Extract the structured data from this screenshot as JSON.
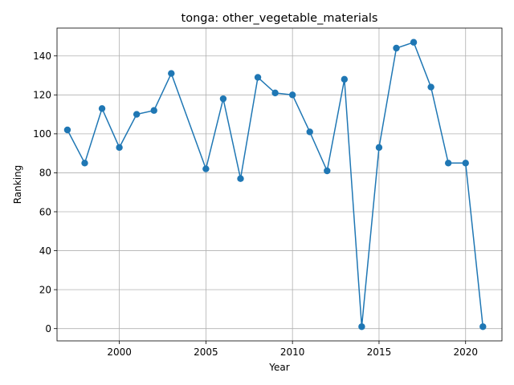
{
  "chart_data": {
    "type": "line",
    "title": "tonga: other_vegetable_materials",
    "xlabel": "Year",
    "ylabel": "Ranking",
    "xlim": [
      1996.4,
      2022.1
    ],
    "ylim": [
      -6.3,
      154.3
    ],
    "xticks": [
      2000,
      2005,
      2010,
      2015,
      2020
    ],
    "yticks": [
      0,
      20,
      40,
      60,
      80,
      100,
      120,
      140
    ],
    "grid": true,
    "series": [
      {
        "color": "#1f77b4",
        "marker": "circle",
        "x": [
          1997,
          1998,
          1999,
          2000,
          2001,
          2002,
          2003,
          2005,
          2006,
          2007,
          2008,
          2009,
          2010,
          2011,
          2012,
          2013,
          2014,
          2015,
          2016,
          2017,
          2018,
          2019,
          2020,
          2021
        ],
        "y": [
          102,
          85,
          113,
          93,
          110,
          112,
          131,
          82,
          118,
          77,
          129,
          121,
          120,
          101,
          81,
          128,
          1,
          93,
          144,
          147,
          124,
          85,
          85,
          1
        ]
      }
    ]
  }
}
